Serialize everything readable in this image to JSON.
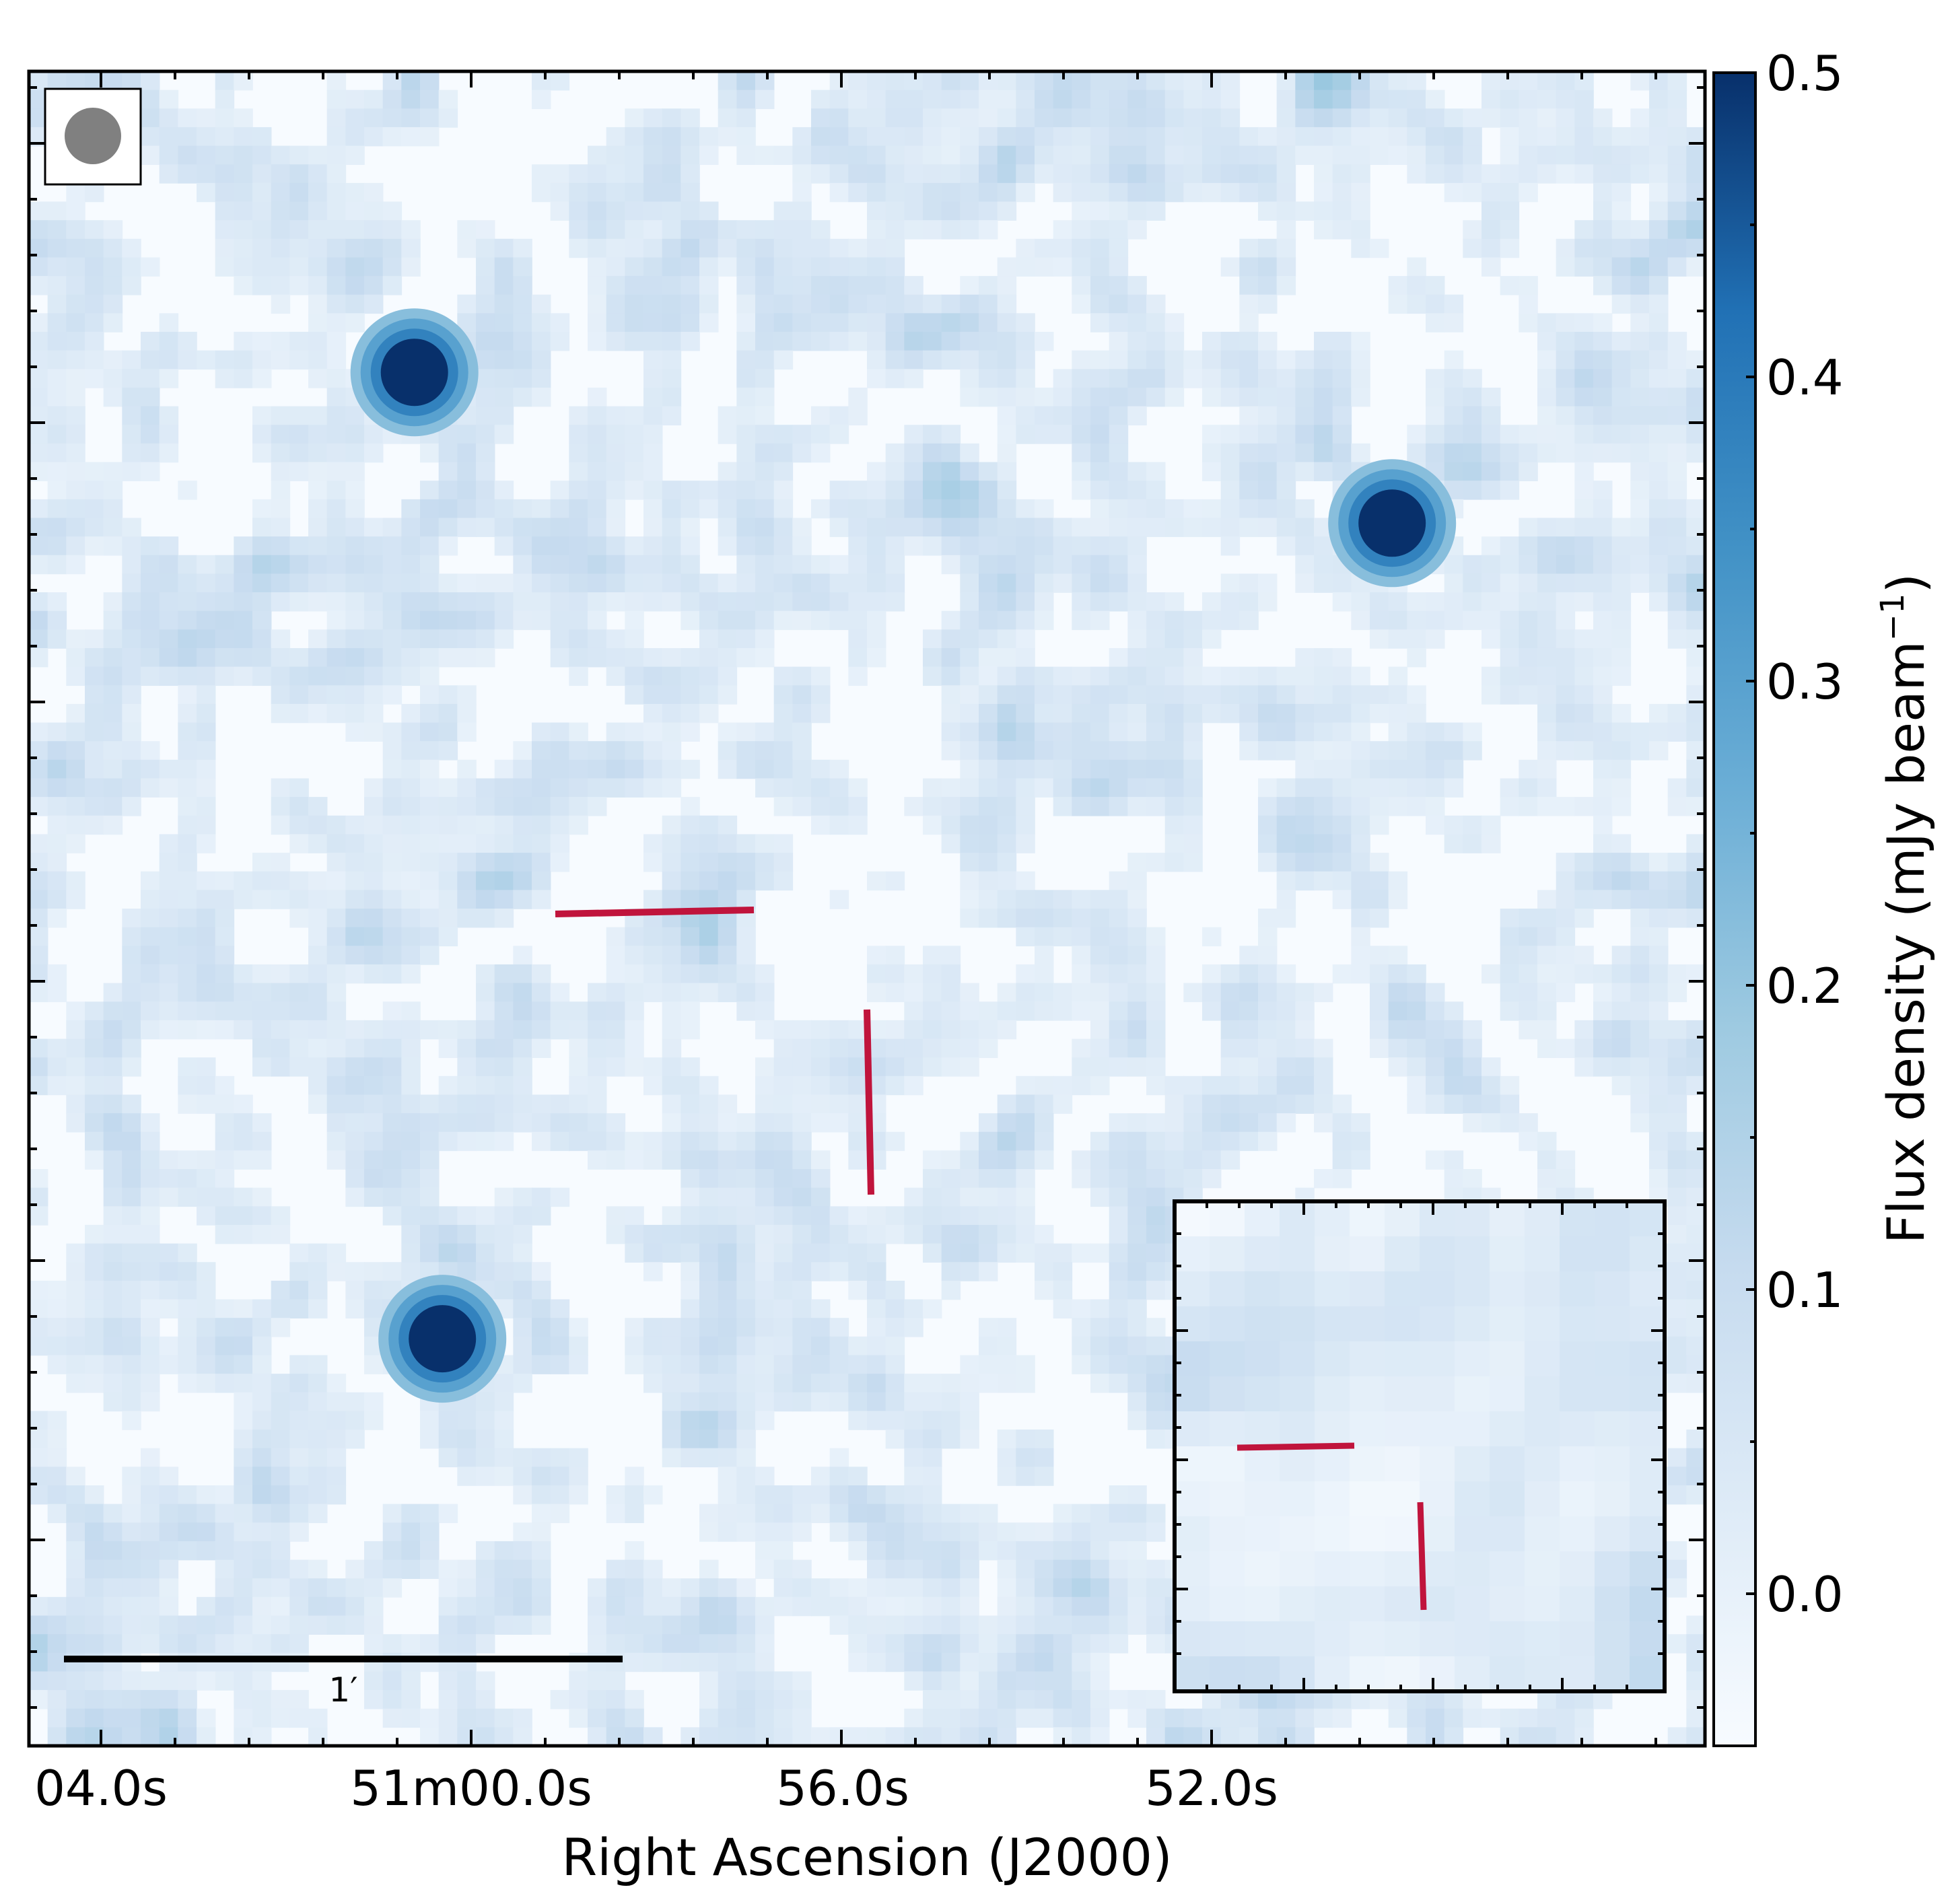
{
  "chart_data": {
    "type": "heatmap",
    "title": "",
    "xlabel": "Right Ascension (J2000)",
    "ylabel": "",
    "x_ticks": [
      "04.0s",
      "51m00.0s",
      "56.0s",
      "52.0s"
    ],
    "colorbar": {
      "label": "Flux density (mJy beam",
      "label_exponent": "−1",
      "label_suffix": ")",
      "range": [
        -0.05,
        0.5
      ],
      "ticks": [
        "0.0",
        "0.1",
        "0.2",
        "0.3",
        "0.4",
        "0.5"
      ],
      "colormap": [
        "#f7fbff",
        "#deebf7",
        "#c6dbef",
        "#9ecae1",
        "#6baed6",
        "#4292c6",
        "#2171b5",
        "#08306b"
      ]
    },
    "sources": [
      {
        "name": "bright-source-center-right",
        "ra_offset_arcsec": 56.4,
        "dec_offset_arcsec": 41.4,
        "peak_mjy": 0.5
      },
      {
        "name": "source-upper-left",
        "ra_offset_arcsec": -48.6,
        "dec_offset_arcsec": 57.6,
        "peak_mjy": 0.5
      },
      {
        "name": "source-lower-left",
        "ra_offset_arcsec": -45.6,
        "dec_offset_arcsec": -46.2,
        "peak_mjy": 0.5
      }
    ],
    "scale_bar": {
      "label": "1′",
      "length_arcmin": 1
    },
    "beam": {
      "shape": "circle",
      "color": "#808080"
    },
    "marker_color": "#c0143c",
    "inset": {
      "description_shown": "zoom of marked position"
    }
  }
}
